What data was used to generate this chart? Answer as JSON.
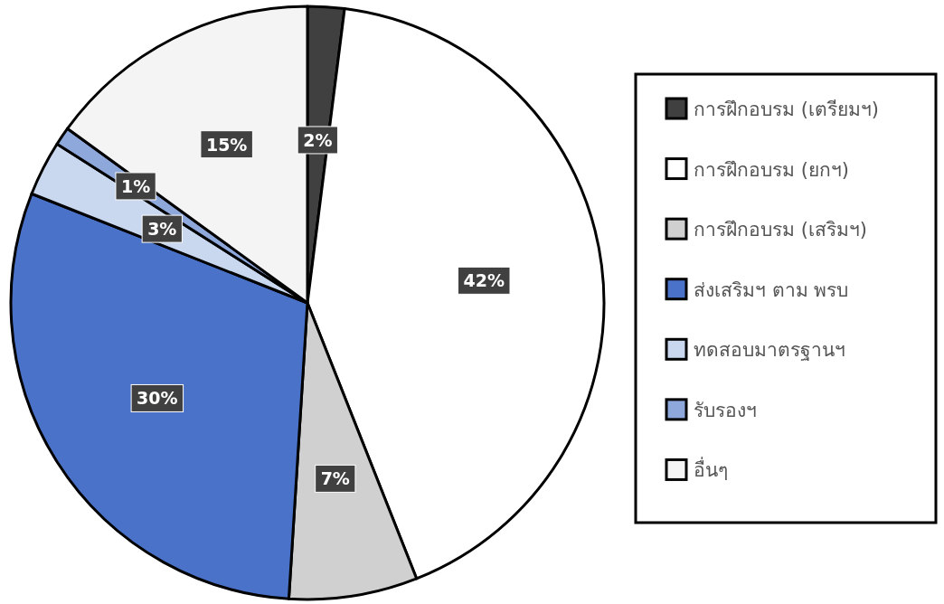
{
  "chart_data": {
    "type": "pie",
    "categories": [
      "การฝึกอบรม (เตรียมฯ)",
      "การฝึกอบรม (ยกฯ)",
      "การฝึกอบรม (เสริมฯ)",
      "ส่งเสริมฯ ตาม พรบ",
      "ทดสอบมาตรฐานฯ",
      "รับรองฯ",
      "อื่นๆ"
    ],
    "values": [
      2,
      42,
      7,
      30,
      3,
      1,
      15
    ],
    "value_labels": [
      "2%",
      "42%",
      "7%",
      "30%",
      "3%",
      "1%",
      "15%"
    ],
    "colors": [
      "#404040",
      "#ffffff",
      "#d0d0d0",
      "#4a72c8",
      "#c9d7ef",
      "#8fa8dc",
      "#f4f4f4"
    ],
    "legend": "right"
  }
}
